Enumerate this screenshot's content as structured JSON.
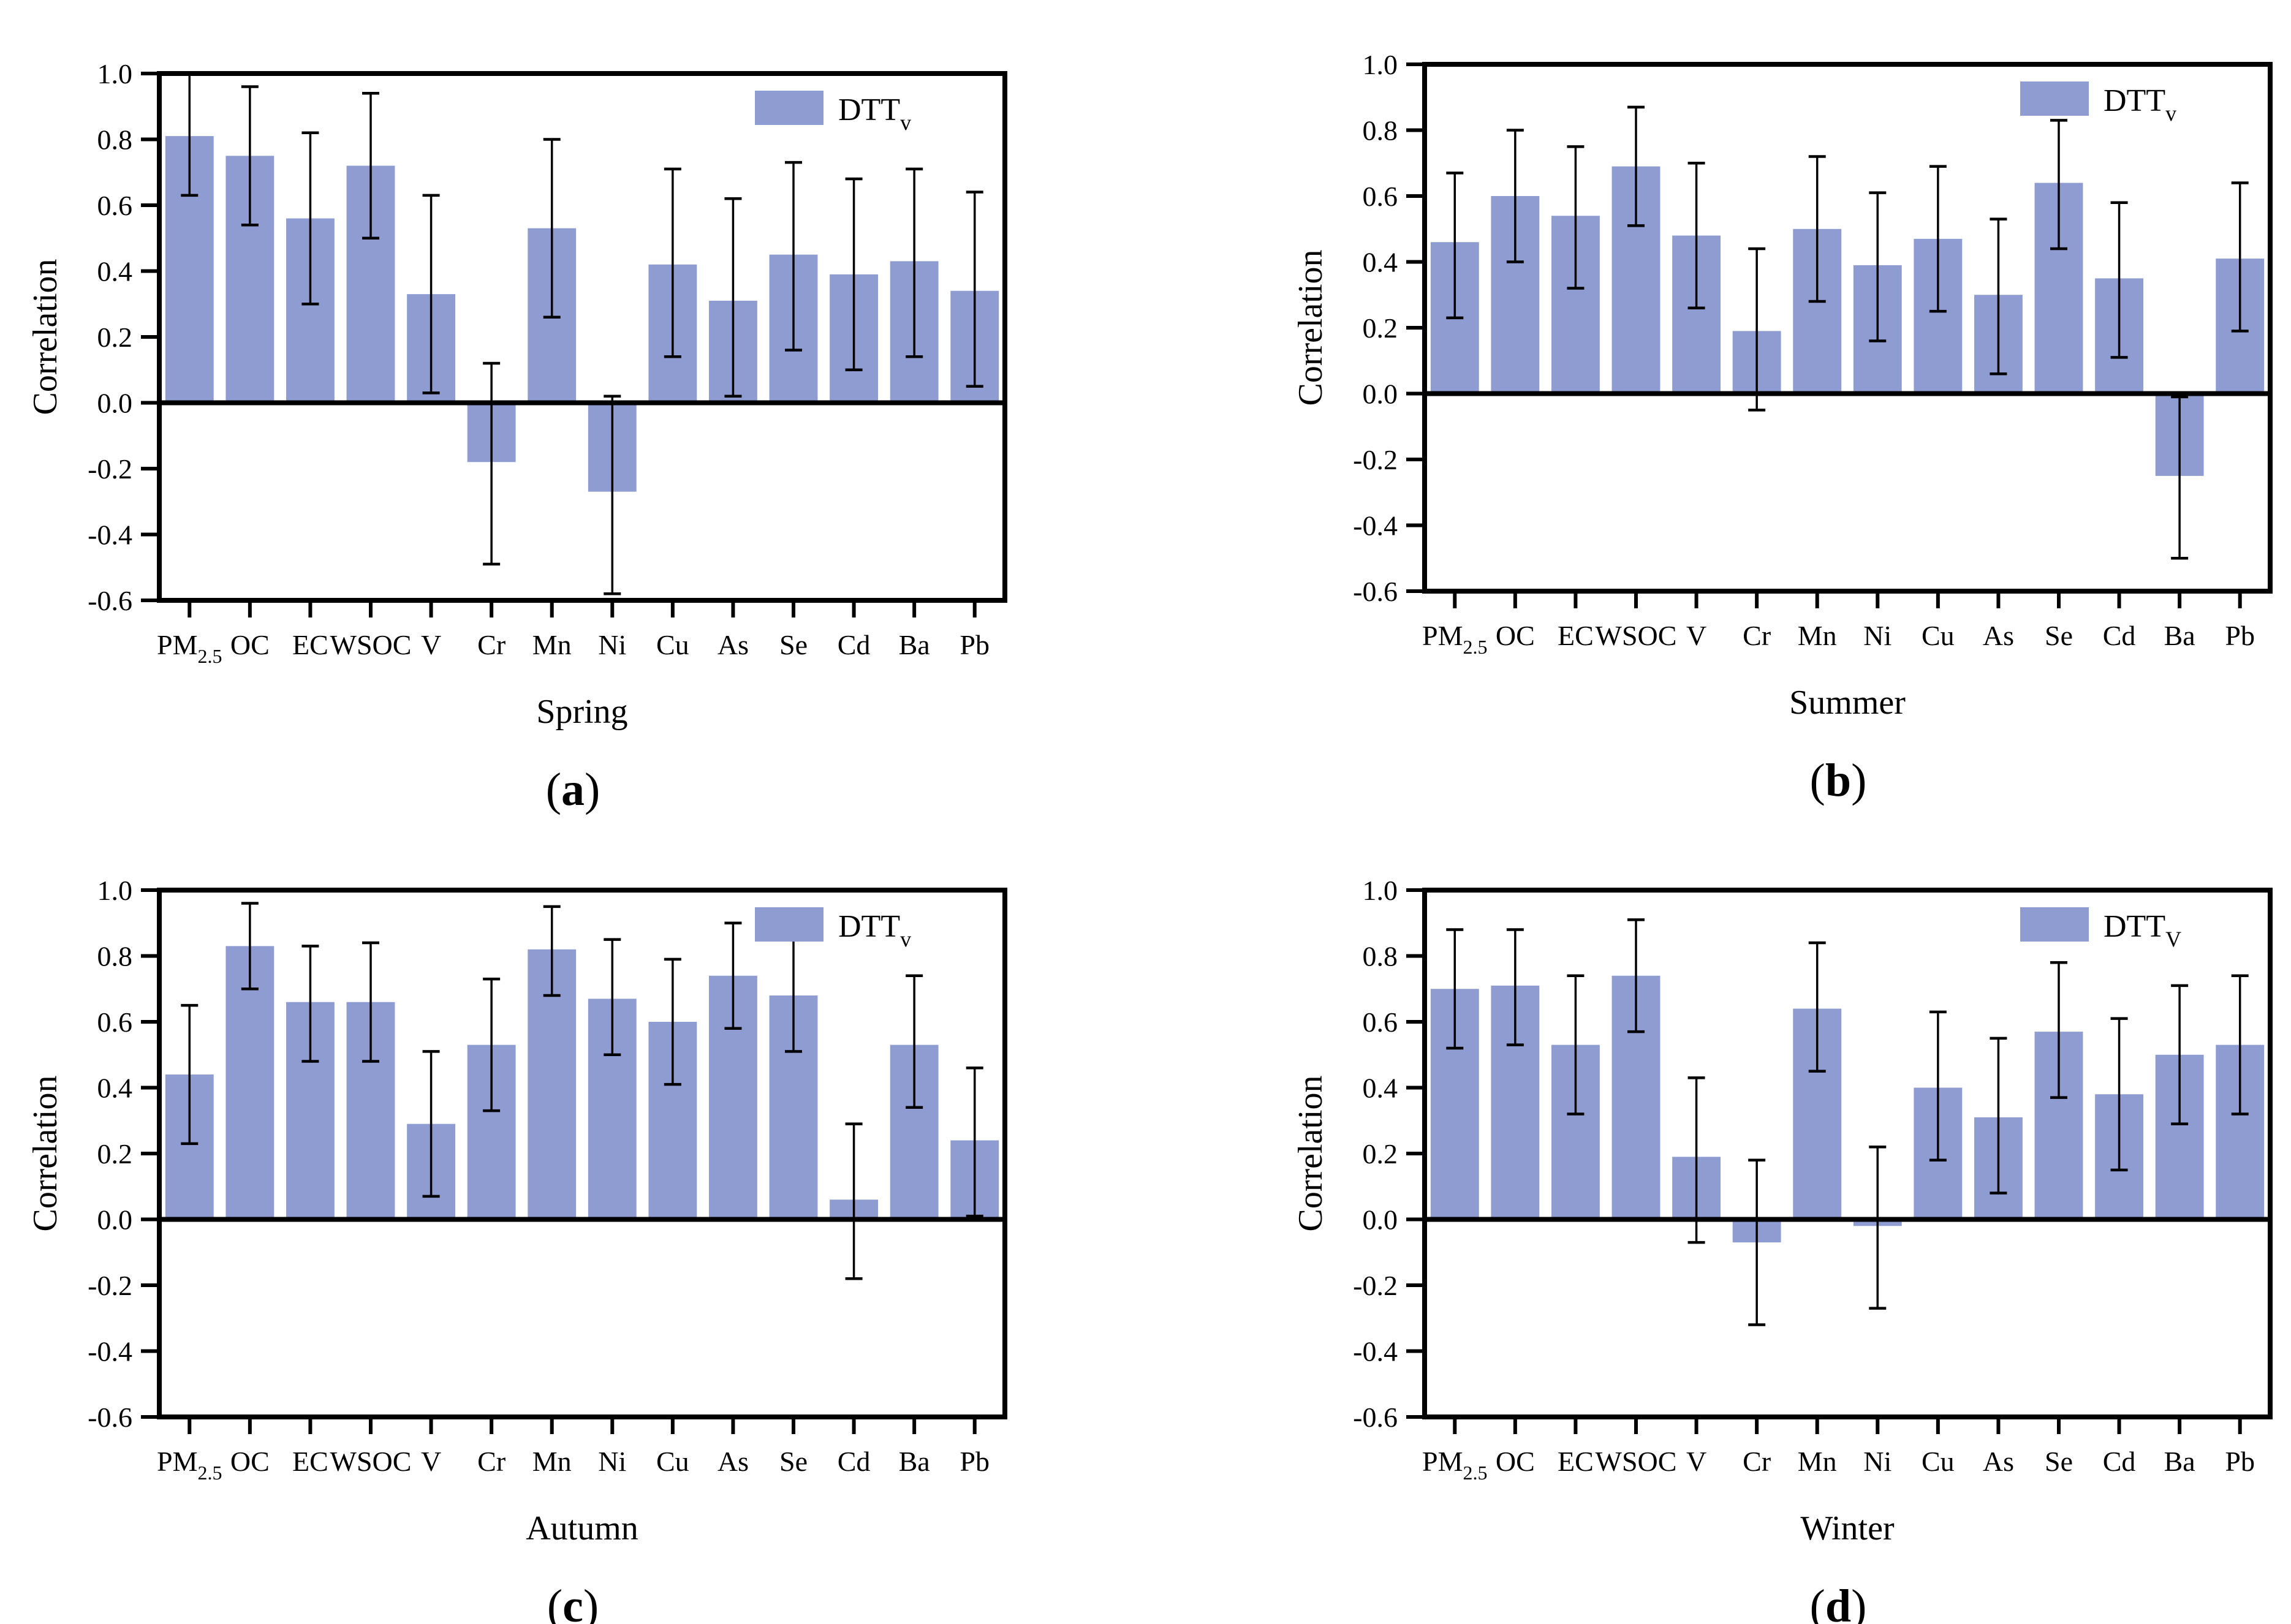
{
  "figure": {
    "background": "#ffffff",
    "bar_color": "#8f9cd1",
    "bar_edge_color": "#8794c9",
    "axis_color": "#000000",
    "error_color": "#000000"
  },
  "chart_data": [
    {
      "type": "bar",
      "panel": {
        "open": "(",
        "letter": "a",
        "close": ")"
      },
      "xlabel": "Spring",
      "ylabel": "Correlation",
      "ylim": [
        -0.6,
        1.0
      ],
      "ytick_step": 0.2,
      "yticks": [
        "1.0",
        "0.8",
        "0.6",
        "0.4",
        "0.2",
        "0.0",
        "-0.2",
        "-0.4",
        "-0.6"
      ],
      "legend": {
        "label": "DTT",
        "sub": "v"
      },
      "categories": [
        {
          "text": "PM",
          "sub": "2.5"
        },
        {
          "text": "OC"
        },
        {
          "text": "EC"
        },
        {
          "text": "WSOC"
        },
        {
          "text": "V"
        },
        {
          "text": "Cr"
        },
        {
          "text": "Mn"
        },
        {
          "text": "Ni"
        },
        {
          "text": "Cu"
        },
        {
          "text": "As"
        },
        {
          "text": "Se"
        },
        {
          "text": "Cd"
        },
        {
          "text": "Ba"
        },
        {
          "text": "Pb"
        }
      ],
      "values": [
        0.81,
        0.75,
        0.56,
        0.72,
        0.33,
        -0.18,
        0.53,
        -0.27,
        0.42,
        0.31,
        0.45,
        0.39,
        0.43,
        0.34
      ],
      "err_low": [
        0.63,
        0.54,
        0.3,
        0.5,
        0.03,
        -0.49,
        0.26,
        -0.58,
        0.14,
        0.02,
        0.16,
        0.1,
        0.14,
        0.05
      ],
      "err_high": [
        1.0,
        0.96,
        0.82,
        0.94,
        0.63,
        0.12,
        0.8,
        0.02,
        0.71,
        0.62,
        0.73,
        0.68,
        0.71,
        0.64
      ]
    },
    {
      "type": "bar",
      "panel": {
        "open": "(",
        "letter": "b",
        "close": ")"
      },
      "xlabel": "Summer",
      "ylabel": "Correlation",
      "ylim": [
        -0.6,
        1.0
      ],
      "ytick_step": 0.2,
      "yticks": [
        "1.0",
        "0.8",
        "0.6",
        "0.4",
        "0.2",
        "0.0",
        "-0.2",
        "-0.4",
        "-0.6"
      ],
      "legend": {
        "label": "DTT",
        "sub": "v"
      },
      "categories": [
        {
          "text": "PM",
          "sub": "2.5"
        },
        {
          "text": "OC"
        },
        {
          "text": "EC"
        },
        {
          "text": "WSOC"
        },
        {
          "text": "V"
        },
        {
          "text": "Cr"
        },
        {
          "text": "Mn"
        },
        {
          "text": "Ni"
        },
        {
          "text": "Cu"
        },
        {
          "text": "As"
        },
        {
          "text": "Se"
        },
        {
          "text": "Cd"
        },
        {
          "text": "Ba"
        },
        {
          "text": "Pb"
        }
      ],
      "values": [
        0.46,
        0.6,
        0.54,
        0.69,
        0.48,
        0.19,
        0.5,
        0.39,
        0.47,
        0.3,
        0.64,
        0.35,
        -0.25,
        0.41
      ],
      "err_low": [
        0.23,
        0.4,
        0.32,
        0.51,
        0.26,
        -0.05,
        0.28,
        0.16,
        0.25,
        0.06,
        0.44,
        0.11,
        -0.5,
        0.19
      ],
      "err_high": [
        0.67,
        0.8,
        0.75,
        0.87,
        0.7,
        0.44,
        0.72,
        0.61,
        0.69,
        0.53,
        0.83,
        0.58,
        -0.01,
        0.64
      ]
    },
    {
      "type": "bar",
      "panel": {
        "open": "(",
        "letter": "c",
        "close": ")"
      },
      "xlabel": "Autumn",
      "ylabel": "Correlation",
      "ylim": [
        -0.6,
        1.0
      ],
      "ytick_step": 0.2,
      "yticks": [
        "1.0",
        "0.8",
        "0.6",
        "0.4",
        "0.2",
        "0.0",
        "-0.2",
        "-0.4",
        "-0.6"
      ],
      "legend": {
        "label": "DTT",
        "sub": "v"
      },
      "categories": [
        {
          "text": "PM",
          "sub": "2.5"
        },
        {
          "text": "OC"
        },
        {
          "text": "EC"
        },
        {
          "text": "WSOC"
        },
        {
          "text": "V"
        },
        {
          "text": "Cr"
        },
        {
          "text": "Mn"
        },
        {
          "text": "Ni"
        },
        {
          "text": "Cu"
        },
        {
          "text": "As"
        },
        {
          "text": "Se"
        },
        {
          "text": "Cd"
        },
        {
          "text": "Ba"
        },
        {
          "text": "Pb"
        }
      ],
      "values": [
        0.44,
        0.83,
        0.66,
        0.66,
        0.29,
        0.53,
        0.82,
        0.67,
        0.6,
        0.74,
        0.68,
        0.06,
        0.53,
        0.24
      ],
      "err_low": [
        0.23,
        0.7,
        0.48,
        0.48,
        0.07,
        0.33,
        0.68,
        0.5,
        0.41,
        0.58,
        0.51,
        -0.18,
        0.34,
        0.01
      ],
      "err_high": [
        0.65,
        0.96,
        0.83,
        0.84,
        0.51,
        0.73,
        0.95,
        0.85,
        0.79,
        0.9,
        0.85,
        0.29,
        0.74,
        0.46
      ]
    },
    {
      "type": "bar",
      "panel": {
        "open": "(",
        "letter": "d",
        "close": ")"
      },
      "xlabel": "Winter",
      "ylabel": "Correlation",
      "ylim": [
        -0.6,
        1.0
      ],
      "ytick_step": 0.2,
      "yticks": [
        "1.0",
        "0.8",
        "0.6",
        "0.4",
        "0.2",
        "0.0",
        "-0.2",
        "-0.4",
        "-0.6"
      ],
      "legend": {
        "label": "DTT",
        "sub": "V"
      },
      "categories": [
        {
          "text": "PM",
          "sub": "2.5"
        },
        {
          "text": "OC"
        },
        {
          "text": "EC"
        },
        {
          "text": "WSOC"
        },
        {
          "text": "V"
        },
        {
          "text": "Cr"
        },
        {
          "text": "Mn"
        },
        {
          "text": "Ni"
        },
        {
          "text": "Cu"
        },
        {
          "text": "As"
        },
        {
          "text": "Se"
        },
        {
          "text": "Cd"
        },
        {
          "text": "Ba"
        },
        {
          "text": "Pb"
        }
      ],
      "values": [
        0.7,
        0.71,
        0.53,
        0.74,
        0.19,
        -0.07,
        0.64,
        -0.02,
        0.4,
        0.31,
        0.57,
        0.38,
        0.5,
        0.53
      ],
      "err_low": [
        0.52,
        0.53,
        0.32,
        0.57,
        -0.07,
        -0.32,
        0.45,
        -0.27,
        0.18,
        0.08,
        0.37,
        0.15,
        0.29,
        0.32
      ],
      "err_high": [
        0.88,
        0.88,
        0.74,
        0.91,
        0.43,
        0.18,
        0.84,
        0.22,
        0.63,
        0.55,
        0.78,
        0.61,
        0.71,
        0.74
      ]
    }
  ]
}
